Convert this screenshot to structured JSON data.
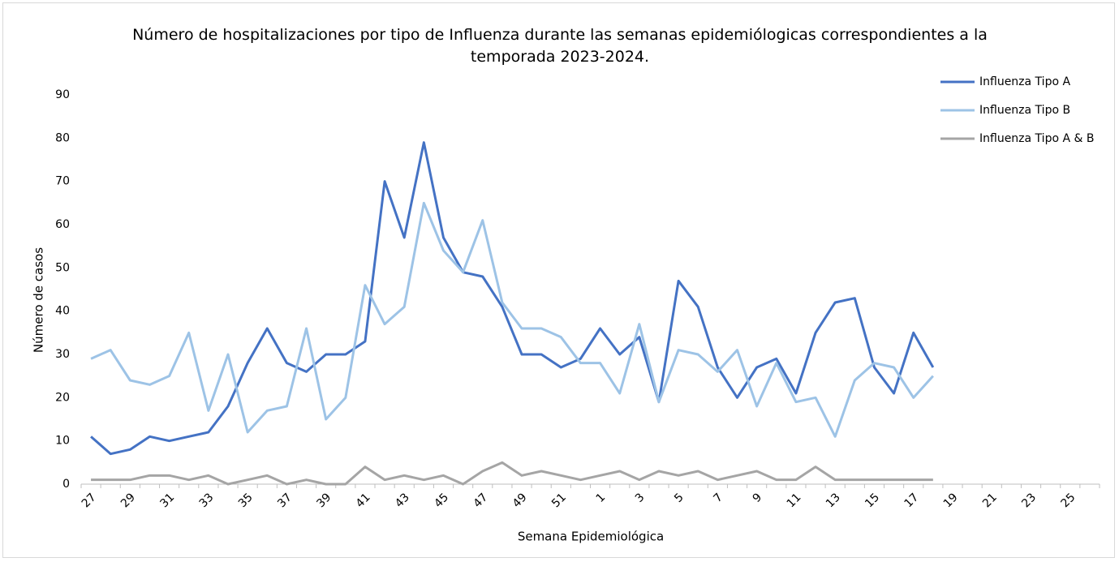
{
  "chart_data": {
    "type": "line",
    "title": "Número de hospitalizaciones por tipo de Influenza durante las semanas epidemiólogicas correspondientes a la temporada 2023-2024.",
    "x_label": "Semana Epidemiológica",
    "y_label": "Número de casos",
    "categories": [
      "27",
      null,
      "29",
      null,
      "31",
      null,
      "33",
      null,
      "35",
      null,
      "37",
      null,
      "39",
      null,
      "41",
      null,
      "43",
      null,
      "45",
      null,
      "47",
      null,
      "49",
      null,
      "51",
      null,
      "1",
      null,
      "3",
      null,
      "5",
      null,
      "7",
      null,
      "9",
      null,
      "11",
      null,
      "13",
      null,
      "15",
      null,
      "17",
      null,
      "19",
      null,
      "21",
      null,
      "23",
      null,
      "25",
      null
    ],
    "series": [
      {
        "name": "Influenza Tipo A",
        "color": "#4472c4",
        "values": [
          11,
          7,
          8,
          11,
          10,
          11,
          12,
          18,
          28,
          36,
          28,
          26,
          30,
          30,
          33,
          70,
          57,
          79,
          57,
          49,
          48,
          41,
          30,
          30,
          27,
          29,
          36,
          30,
          34,
          19,
          47,
          41,
          27,
          20,
          27,
          29,
          21,
          35,
          42,
          43,
          27,
          21,
          35,
          27,
          null,
          null,
          null,
          null,
          null,
          null,
          null,
          null
        ]
      },
      {
        "name": "Influenza Tipo B",
        "color": "#9dc3e6",
        "values": [
          29,
          31,
          24,
          23,
          25,
          35,
          17,
          30,
          12,
          17,
          18,
          36,
          15,
          20,
          46,
          37,
          41,
          65,
          54,
          49,
          61,
          42,
          36,
          36,
          34,
          28,
          28,
          21,
          37,
          19,
          31,
          30,
          26,
          31,
          18,
          28,
          19,
          20,
          11,
          24,
          28,
          27,
          20,
          25,
          null,
          null,
          null,
          null,
          null,
          null,
          null,
          null
        ]
      },
      {
        "name": "Influenza Tipo A & B",
        "color": "#a5a5a5",
        "values": [
          1,
          1,
          1,
          2,
          2,
          1,
          2,
          0,
          1,
          2,
          0,
          1,
          0,
          0,
          4,
          1,
          2,
          1,
          2,
          0,
          3,
          5,
          2,
          3,
          2,
          1,
          2,
          3,
          1,
          3,
          2,
          3,
          1,
          2,
          3,
          1,
          1,
          4,
          1,
          1,
          1,
          1,
          1,
          1,
          null,
          null,
          null,
          null,
          null,
          null,
          null,
          null
        ]
      }
    ],
    "ylim": [
      0,
      90
    ],
    "yticks": [
      0,
      10,
      20,
      30,
      40,
      50,
      60,
      70,
      80,
      90
    ],
    "grid": false,
    "legend": "top-right"
  }
}
